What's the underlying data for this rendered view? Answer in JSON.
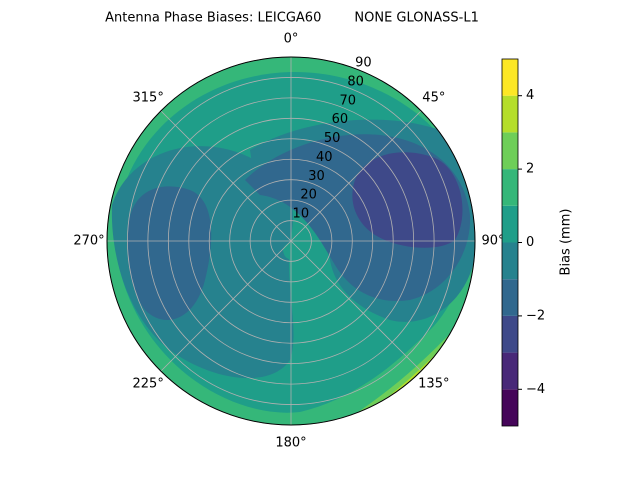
{
  "chart_data": {
    "type": "polar-contour",
    "title": "Antenna Phase Biases: LEICGA60        NONE GLONASS-L1",
    "thetaticks": [
      {
        "value": 0,
        "label": "0°"
      },
      {
        "value": 45,
        "label": "45°"
      },
      {
        "value": 90,
        "label": "90°"
      },
      {
        "value": 135,
        "label": "135°"
      },
      {
        "value": 180,
        "label": "180°"
      },
      {
        "value": 225,
        "label": "225°"
      },
      {
        "value": 270,
        "label": "270°"
      },
      {
        "value": 315,
        "label": "315°"
      }
    ],
    "rlim": [
      0,
      90
    ],
    "rticks": [
      10,
      20,
      30,
      40,
      50,
      60,
      70,
      80,
      90
    ],
    "grid": true,
    "levels": [
      -5,
      -4,
      -3,
      -2,
      -1,
      0,
      1,
      2,
      3,
      4,
      5
    ],
    "colors": [
      "#450559",
      "#482878",
      "#3e4989",
      "#31688e",
      "#26828e",
      "#1f9e89",
      "#35b779",
      "#6ece58",
      "#b5de2b",
      "#fde725"
    ],
    "colorbar_label": "Bias (mm)",
    "clim": [
      -5,
      5
    ],
    "colorbar_ticks": [
      {
        "value": -4,
        "label": "−4"
      },
      {
        "value": -2,
        "label": "−2"
      },
      0,
      2,
      4
    ]
  }
}
